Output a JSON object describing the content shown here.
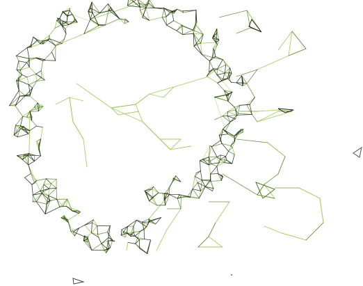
{
  "figure": {
    "kind": "network-graph",
    "description_free": true,
    "colors": {
      "background": "#ffffff",
      "edge_dark": "#1a2410",
      "edge_mid": "#4f7a24",
      "edge_light": "#9cc95c",
      "edge_pale": "#cfe6a6"
    }
  }
}
